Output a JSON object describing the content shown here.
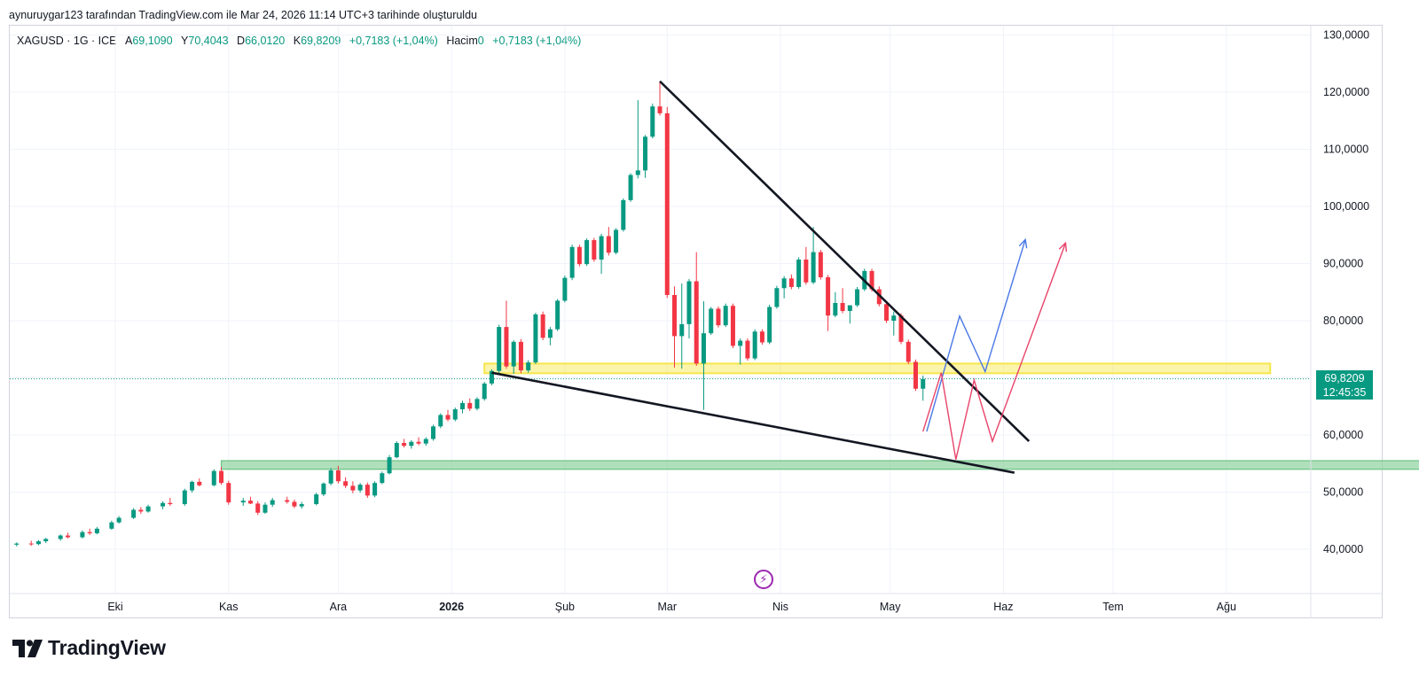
{
  "header": {
    "attribution": "aynuruygar123 tarafından TradingView.com ile Mar 24, 2026 11:14 UTC+3 tarihinde oluşturuldu"
  },
  "legend": {
    "symbol": "XAGUSD · 1G · ICE",
    "open_label": "A",
    "open_value": "69,1090",
    "high_label": "Y",
    "high_value": "70,4043",
    "low_label": "D",
    "low_value": "66,0120",
    "close_label": "K",
    "close_value": "69,8209",
    "change": "+0,7183 (+1,04%)",
    "volume_label": "Hacim",
    "volume_value": "0",
    "volume_change": "+0,7183 (+1,04%)"
  },
  "price_tag": {
    "price": "69,8209",
    "countdown": "12:45:35"
  },
  "brand": {
    "name": "TradingView"
  },
  "colors": {
    "up": "#089981",
    "down": "#f23645",
    "trendline": "#131722",
    "resistance_zone": "#f7e64a",
    "support_zone": "#8fd19e",
    "path_blue": "#4a78e6",
    "path_red": "#e8436a"
  },
  "chart_data": {
    "type": "candlestick",
    "y_axis": {
      "ticks": [
        40,
        50,
        60,
        70,
        80,
        90,
        100,
        110,
        120,
        130
      ],
      "tick_labels": [
        "40,0000",
        "50,0000",
        "60,0000",
        "80,0000",
        "90,0000",
        "100,0000",
        "110,0000",
        "120,0000",
        "130,0000"
      ],
      "range": [
        31,
        131
      ]
    },
    "x_axis": {
      "tick_labels": [
        "Eki",
        "Kas",
        "Ara",
        "2026",
        "Şub",
        "Mar",
        "Nis",
        "May",
        "Haz",
        "Tem",
        "Ağu"
      ],
      "tick_dates": [
        "2025-10-01",
        "2025-11-01",
        "2025-12-01",
        "2026-01-01",
        "2026-02-01",
        "2026-03-01",
        "2026-04-01",
        "2026-05-01",
        "2026-06-01",
        "2026-07-01",
        "2026-08-01"
      ],
      "bold_label": "2026"
    },
    "last_price": 69.8209,
    "candles": [
      {
        "t": "2025-09-04",
        "o": 40.8,
        "h": 41.2,
        "l": 40.5,
        "c": 41.0
      },
      {
        "t": "2025-09-08",
        "o": 41.0,
        "h": 41.5,
        "l": 40.6,
        "c": 40.9
      },
      {
        "t": "2025-09-10",
        "o": 40.9,
        "h": 41.6,
        "l": 40.7,
        "c": 41.4
      },
      {
        "t": "2025-09-12",
        "o": 41.4,
        "h": 42.0,
        "l": 41.1,
        "c": 41.8
      },
      {
        "t": "2025-09-16",
        "o": 41.8,
        "h": 42.6,
        "l": 41.5,
        "c": 42.4
      },
      {
        "t": "2025-09-18",
        "o": 42.4,
        "h": 42.9,
        "l": 41.9,
        "c": 42.1
      },
      {
        "t": "2025-09-22",
        "o": 42.1,
        "h": 43.3,
        "l": 41.9,
        "c": 43.0
      },
      {
        "t": "2025-09-24",
        "o": 43.0,
        "h": 43.6,
        "l": 42.5,
        "c": 42.8
      },
      {
        "t": "2025-09-26",
        "o": 42.8,
        "h": 43.9,
        "l": 42.6,
        "c": 43.6
      },
      {
        "t": "2025-09-30",
        "o": 43.6,
        "h": 45.0,
        "l": 43.4,
        "c": 44.7
      },
      {
        "t": "2025-10-02",
        "o": 44.7,
        "h": 45.8,
        "l": 44.5,
        "c": 45.5
      },
      {
        "t": "2025-10-06",
        "o": 45.5,
        "h": 47.2,
        "l": 45.3,
        "c": 46.9
      },
      {
        "t": "2025-10-08",
        "o": 46.9,
        "h": 47.4,
        "l": 46.2,
        "c": 46.6
      },
      {
        "t": "2025-10-10",
        "o": 46.6,
        "h": 47.8,
        "l": 46.4,
        "c": 47.5
      },
      {
        "t": "2025-10-14",
        "o": 47.5,
        "h": 48.4,
        "l": 47.0,
        "c": 48.1
      },
      {
        "t": "2025-10-16",
        "o": 48.1,
        "h": 49.0,
        "l": 47.6,
        "c": 47.9
      },
      {
        "t": "2025-10-20",
        "o": 47.9,
        "h": 50.6,
        "l": 47.6,
        "c": 50.3
      },
      {
        "t": "2025-10-22",
        "o": 50.3,
        "h": 52.0,
        "l": 49.9,
        "c": 51.8
      },
      {
        "t": "2025-10-24",
        "o": 51.8,
        "h": 52.4,
        "l": 51.0,
        "c": 51.2
      },
      {
        "t": "2025-10-28",
        "o": 51.2,
        "h": 54.0,
        "l": 51.0,
        "c": 53.7
      },
      {
        "t": "2025-10-30",
        "o": 53.7,
        "h": 54.4,
        "l": 51.3,
        "c": 51.6
      },
      {
        "t": "2025-11-01",
        "o": 51.6,
        "h": 52.0,
        "l": 47.8,
        "c": 48.2
      },
      {
        "t": "2025-11-05",
        "o": 48.2,
        "h": 49.0,
        "l": 47.6,
        "c": 48.5
      },
      {
        "t": "2025-11-07",
        "o": 48.5,
        "h": 49.2,
        "l": 47.9,
        "c": 48.0
      },
      {
        "t": "2025-11-09",
        "o": 48.0,
        "h": 48.4,
        "l": 46.0,
        "c": 46.4
      },
      {
        "t": "2025-11-11",
        "o": 46.4,
        "h": 48.2,
        "l": 46.2,
        "c": 47.8
      },
      {
        "t": "2025-11-13",
        "o": 47.8,
        "h": 49.0,
        "l": 47.4,
        "c": 48.6
      },
      {
        "t": "2025-11-17",
        "o": 48.6,
        "h": 49.2,
        "l": 48.0,
        "c": 48.3
      },
      {
        "t": "2025-11-19",
        "o": 48.3,
        "h": 48.7,
        "l": 47.2,
        "c": 47.5
      },
      {
        "t": "2025-11-21",
        "o": 47.5,
        "h": 48.3,
        "l": 47.1,
        "c": 47.9
      },
      {
        "t": "2025-11-25",
        "o": 47.9,
        "h": 49.9,
        "l": 47.7,
        "c": 49.6
      },
      {
        "t": "2025-11-27",
        "o": 49.6,
        "h": 51.7,
        "l": 49.3,
        "c": 51.5
      },
      {
        "t": "2025-11-29",
        "o": 51.5,
        "h": 54.2,
        "l": 51.2,
        "c": 53.8
      },
      {
        "t": "2025-12-01",
        "o": 53.8,
        "h": 54.6,
        "l": 51.5,
        "c": 51.9
      },
      {
        "t": "2025-12-03",
        "o": 51.9,
        "h": 52.6,
        "l": 50.7,
        "c": 51.1
      },
      {
        "t": "2025-12-05",
        "o": 51.1,
        "h": 51.9,
        "l": 49.8,
        "c": 50.3
      },
      {
        "t": "2025-12-07",
        "o": 50.3,
        "h": 51.6,
        "l": 49.9,
        "c": 51.3
      },
      {
        "t": "2025-12-09",
        "o": 51.3,
        "h": 51.7,
        "l": 49.0,
        "c": 49.4
      },
      {
        "t": "2025-12-11",
        "o": 49.4,
        "h": 51.9,
        "l": 49.1,
        "c": 51.6
      },
      {
        "t": "2025-12-13",
        "o": 51.6,
        "h": 53.6,
        "l": 51.4,
        "c": 53.3
      },
      {
        "t": "2025-12-15",
        "o": 53.3,
        "h": 56.5,
        "l": 53.1,
        "c": 56.1
      },
      {
        "t": "2025-12-17",
        "o": 56.1,
        "h": 58.9,
        "l": 55.9,
        "c": 58.6
      },
      {
        "t": "2025-12-19",
        "o": 58.6,
        "h": 59.3,
        "l": 57.8,
        "c": 58.1
      },
      {
        "t": "2025-12-21",
        "o": 58.1,
        "h": 59.1,
        "l": 57.6,
        "c": 58.8
      },
      {
        "t": "2025-12-23",
        "o": 58.8,
        "h": 59.6,
        "l": 58.2,
        "c": 58.5
      },
      {
        "t": "2025-12-25",
        "o": 58.5,
        "h": 59.6,
        "l": 58.1,
        "c": 59.3
      },
      {
        "t": "2025-12-27",
        "o": 59.3,
        "h": 61.8,
        "l": 59.0,
        "c": 61.5
      },
      {
        "t": "2025-12-29",
        "o": 61.5,
        "h": 63.8,
        "l": 61.2,
        "c": 63.5
      },
      {
        "t": "2025-12-31",
        "o": 63.5,
        "h": 64.4,
        "l": 62.4,
        "c": 62.7
      },
      {
        "t": "2026-01-02",
        "o": 62.7,
        "h": 64.8,
        "l": 62.4,
        "c": 64.5
      },
      {
        "t": "2026-01-04",
        "o": 64.5,
        "h": 66.0,
        "l": 63.8,
        "c": 65.6
      },
      {
        "t": "2026-01-06",
        "o": 65.6,
        "h": 66.4,
        "l": 64.2,
        "c": 64.6
      },
      {
        "t": "2026-01-08",
        "o": 64.6,
        "h": 66.6,
        "l": 64.3,
        "c": 66.3
      },
      {
        "t": "2026-01-10",
        "o": 66.3,
        "h": 69.3,
        "l": 66.0,
        "c": 69.0
      },
      {
        "t": "2026-01-12",
        "o": 69.0,
        "h": 71.5,
        "l": 68.7,
        "c": 71.2
      },
      {
        "t": "2026-01-14",
        "o": 71.2,
        "h": 79.3,
        "l": 70.8,
        "c": 78.9
      },
      {
        "t": "2026-01-16",
        "o": 78.9,
        "h": 83.5,
        "l": 71.6,
        "c": 72.0
      },
      {
        "t": "2026-01-18",
        "o": 72.0,
        "h": 76.6,
        "l": 70.7,
        "c": 76.3
      },
      {
        "t": "2026-01-20",
        "o": 76.3,
        "h": 76.8,
        "l": 70.8,
        "c": 71.3
      },
      {
        "t": "2026-01-22",
        "o": 71.3,
        "h": 73.1,
        "l": 70.9,
        "c": 72.7
      },
      {
        "t": "2026-01-24",
        "o": 72.7,
        "h": 81.4,
        "l": 72.4,
        "c": 81.1
      },
      {
        "t": "2026-01-26",
        "o": 81.1,
        "h": 81.6,
        "l": 76.6,
        "c": 77.0
      },
      {
        "t": "2026-01-28",
        "o": 77.0,
        "h": 78.9,
        "l": 75.7,
        "c": 78.5
      },
      {
        "t": "2026-01-30",
        "o": 78.5,
        "h": 83.8,
        "l": 78.2,
        "c": 83.5
      },
      {
        "t": "2026-02-01",
        "o": 83.5,
        "h": 87.9,
        "l": 83.2,
        "c": 87.5
      },
      {
        "t": "2026-02-03",
        "o": 87.5,
        "h": 93.3,
        "l": 87.1,
        "c": 92.9
      },
      {
        "t": "2026-02-05",
        "o": 92.9,
        "h": 93.3,
        "l": 89.5,
        "c": 89.9
      },
      {
        "t": "2026-02-07",
        "o": 89.9,
        "h": 94.4,
        "l": 89.6,
        "c": 94.1
      },
      {
        "t": "2026-02-09",
        "o": 94.1,
        "h": 94.5,
        "l": 90.3,
        "c": 90.7
      },
      {
        "t": "2026-02-11",
        "o": 90.7,
        "h": 95.2,
        "l": 88.2,
        "c": 94.8
      },
      {
        "t": "2026-02-13",
        "o": 94.8,
        "h": 96.4,
        "l": 91.4,
        "c": 91.9
      },
      {
        "t": "2026-02-15",
        "o": 91.9,
        "h": 96.2,
        "l": 91.6,
        "c": 95.9
      },
      {
        "t": "2026-02-17",
        "o": 95.9,
        "h": 101.4,
        "l": 95.6,
        "c": 101.1
      },
      {
        "t": "2026-02-19",
        "o": 101.1,
        "h": 105.8,
        "l": 100.8,
        "c": 105.5
      },
      {
        "t": "2026-02-21",
        "o": 105.5,
        "h": 118.6,
        "l": 104.9,
        "c": 106.3
      },
      {
        "t": "2026-02-23",
        "o": 106.3,
        "h": 112.5,
        "l": 105.0,
        "c": 112.2
      },
      {
        "t": "2026-02-25",
        "o": 112.2,
        "h": 118.0,
        "l": 111.9,
        "c": 117.5
      },
      {
        "t": "2026-02-27",
        "o": 117.5,
        "h": 121.8,
        "l": 115.9,
        "c": 116.3
      },
      {
        "t": "2026-03-01",
        "o": 116.3,
        "h": 117.4,
        "l": 84.0,
        "c": 84.5
      },
      {
        "t": "2026-03-03",
        "o": 84.5,
        "h": 86.0,
        "l": 71.8,
        "c": 77.3
      },
      {
        "t": "2026-03-05",
        "o": 77.3,
        "h": 86.5,
        "l": 71.6,
        "c": 79.4
      },
      {
        "t": "2026-03-07",
        "o": 79.4,
        "h": 87.3,
        "l": 76.9,
        "c": 86.9
      },
      {
        "t": "2026-03-09",
        "o": 86.9,
        "h": 92.0,
        "l": 72.1,
        "c": 72.5
      },
      {
        "t": "2026-03-11",
        "o": 72.5,
        "h": 83.4,
        "l": 64.4,
        "c": 77.8
      },
      {
        "t": "2026-03-13",
        "o": 77.8,
        "h": 82.4,
        "l": 77.5,
        "c": 82.1
      },
      {
        "t": "2026-03-15",
        "o": 82.1,
        "h": 82.5,
        "l": 78.8,
        "c": 79.2
      },
      {
        "t": "2026-03-17",
        "o": 79.2,
        "h": 83.0,
        "l": 78.9,
        "c": 82.6
      },
      {
        "t": "2026-03-19",
        "o": 82.6,
        "h": 83.0,
        "l": 75.2,
        "c": 75.6
      },
      {
        "t": "2026-03-21",
        "o": 75.6,
        "h": 76.9,
        "l": 72.3,
        "c": 76.5
      },
      {
        "t": "2026-03-23",
        "o": 76.5,
        "h": 76.9,
        "l": 73.0,
        "c": 73.4
      },
      {
        "t": "2026-03-25",
        "o": 73.4,
        "h": 78.5,
        "l": 73.1,
        "c": 78.1
      },
      {
        "t": "2026-03-27",
        "o": 78.1,
        "h": 78.5,
        "l": 75.8,
        "c": 76.2
      },
      {
        "t": "2026-03-29",
        "o": 76.2,
        "h": 82.8,
        "l": 75.9,
        "c": 82.4
      },
      {
        "t": "2026-03-31",
        "o": 82.4,
        "h": 86.1,
        "l": 82.1,
        "c": 85.7
      },
      {
        "t": "2026-04-02",
        "o": 85.7,
        "h": 87.8,
        "l": 83.9,
        "c": 87.4
      },
      {
        "t": "2026-04-04",
        "o": 87.4,
        "h": 88.1,
        "l": 85.5,
        "c": 85.9
      },
      {
        "t": "2026-04-06",
        "o": 85.9,
        "h": 91.1,
        "l": 85.6,
        "c": 90.7
      },
      {
        "t": "2026-04-08",
        "o": 90.7,
        "h": 92.9,
        "l": 86.3,
        "c": 86.7
      },
      {
        "t": "2026-04-10",
        "o": 86.7,
        "h": 96.4,
        "l": 86.4,
        "c": 92.0
      },
      {
        "t": "2026-04-12",
        "o": 92.0,
        "h": 92.4,
        "l": 87.2,
        "c": 87.6
      },
      {
        "t": "2026-04-14",
        "o": 87.6,
        "h": 88.0,
        "l": 78.2,
        "c": 80.9
      },
      {
        "t": "2026-04-16",
        "o": 80.9,
        "h": 85.0,
        "l": 80.6,
        "c": 83.1
      },
      {
        "t": "2026-04-18",
        "o": 83.1,
        "h": 85.7,
        "l": 81.3,
        "c": 81.7
      },
      {
        "t": "2026-04-20",
        "o": 81.7,
        "h": 82.1,
        "l": 79.5,
        "c": 82.7
      },
      {
        "t": "2026-04-22",
        "o": 82.7,
        "h": 85.9,
        "l": 82.4,
        "c": 85.5
      },
      {
        "t": "2026-04-24",
        "o": 85.5,
        "h": 89.1,
        "l": 85.2,
        "c": 88.7
      },
      {
        "t": "2026-04-26",
        "o": 88.7,
        "h": 89.1,
        "l": 85.1,
        "c": 85.5
      },
      {
        "t": "2026-04-28",
        "o": 85.5,
        "h": 86.0,
        "l": 82.5,
        "c": 82.9
      },
      {
        "t": "2026-04-30",
        "o": 82.9,
        "h": 83.3,
        "l": 79.6,
        "c": 80.0
      },
      {
        "t": "2026-05-02",
        "o": 80.0,
        "h": 81.6,
        "l": 77.4,
        "c": 80.9
      },
      {
        "t": "2026-05-04",
        "o": 80.9,
        "h": 81.3,
        "l": 75.9,
        "c": 76.3
      },
      {
        "t": "2026-05-06",
        "o": 76.3,
        "h": 76.7,
        "l": 72.4,
        "c": 72.8
      },
      {
        "t": "2026-05-08",
        "o": 72.8,
        "h": 73.2,
        "l": 67.7,
        "c": 68.1
      },
      {
        "t": "2026-05-10",
        "o": 68.1,
        "h": 70.4,
        "l": 66.0,
        "c": 69.8
      }
    ],
    "drawings": {
      "upper_trendline": {
        "from": {
          "t": "2026-02-27",
          "p": 121.9
        },
        "to": {
          "t": "2026-06-08",
          "p": 58.9
        }
      },
      "lower_trendline": {
        "from": {
          "t": "2026-01-12",
          "p": 70.9
        },
        "to": {
          "t": "2026-06-04",
          "p": 53.4
        }
      },
      "resistance_zone": {
        "t1": "2026-01-10",
        "t2": "2026-08-13",
        "p1": 70.8,
        "p2": 72.5
      },
      "support_zone": {
        "t1": "2025-10-30",
        "t2": "2026-10-05",
        "p1": 54.0,
        "p2": 55.5
      },
      "projection_blue": [
        {
          "t": "2026-05-11",
          "p": 60.6
        },
        {
          "t": "2026-05-20",
          "p": 80.8
        },
        {
          "t": "2026-05-27",
          "p": 71.1
        },
        {
          "t": "2026-06-07",
          "p": 94.2
        }
      ],
      "projection_red": [
        {
          "t": "2026-05-10",
          "p": 60.6
        },
        {
          "t": "2026-05-15",
          "p": 70.9
        },
        {
          "t": "2026-05-19",
          "p": 55.7
        },
        {
          "t": "2026-05-24",
          "p": 69.6
        },
        {
          "t": "2026-05-29",
          "p": 58.9
        },
        {
          "t": "2026-06-18",
          "p": 93.6
        }
      ]
    }
  }
}
